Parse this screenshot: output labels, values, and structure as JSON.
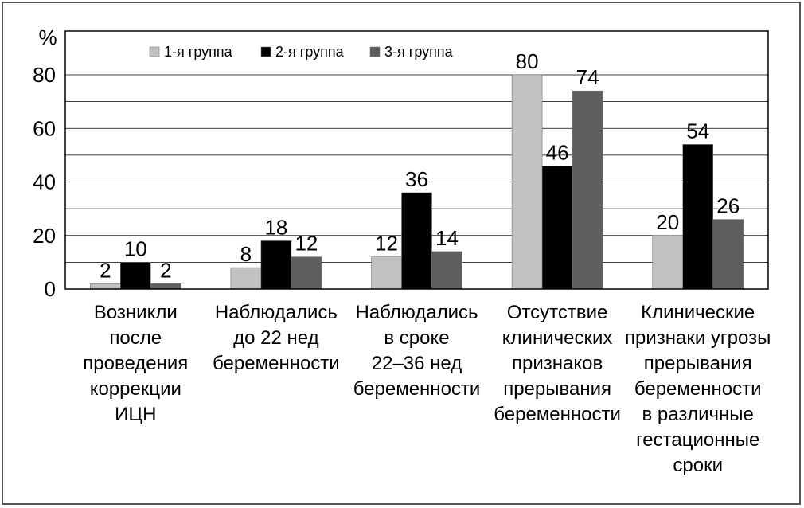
{
  "chart_data": {
    "type": "bar",
    "ylabel": "%",
    "ylim": [
      0,
      80
    ],
    "yticks": [
      0,
      20,
      40,
      60,
      80
    ],
    "grid": true,
    "legend_position": "top-left",
    "categories": [
      [
        "Возникли",
        "после",
        "проведения",
        "коррекции",
        "ИЦН"
      ],
      [
        "Наблюдались",
        "до 22 нед",
        "беременности"
      ],
      [
        "Наблюдались",
        "в сроке",
        "22–36 нед",
        "беременности"
      ],
      [
        "Отсутствие",
        "клинических",
        "признаков",
        "прерывания",
        "беременности"
      ],
      [
        "Клинические",
        "признаки угрозы",
        "прерывания",
        "беременности",
        "в различные",
        "гестационные",
        "сроки"
      ]
    ],
    "series": [
      {
        "name": "1-я группа",
        "color": "#c2c2c2",
        "values": [
          2,
          8,
          12,
          80,
          20
        ]
      },
      {
        "name": "2-я группа",
        "color": "#000000",
        "values": [
          10,
          18,
          36,
          46,
          54
        ]
      },
      {
        "name": "3-я группа",
        "color": "#5e5e5e",
        "values": [
          2,
          12,
          14,
          74,
          26
        ]
      }
    ]
  }
}
